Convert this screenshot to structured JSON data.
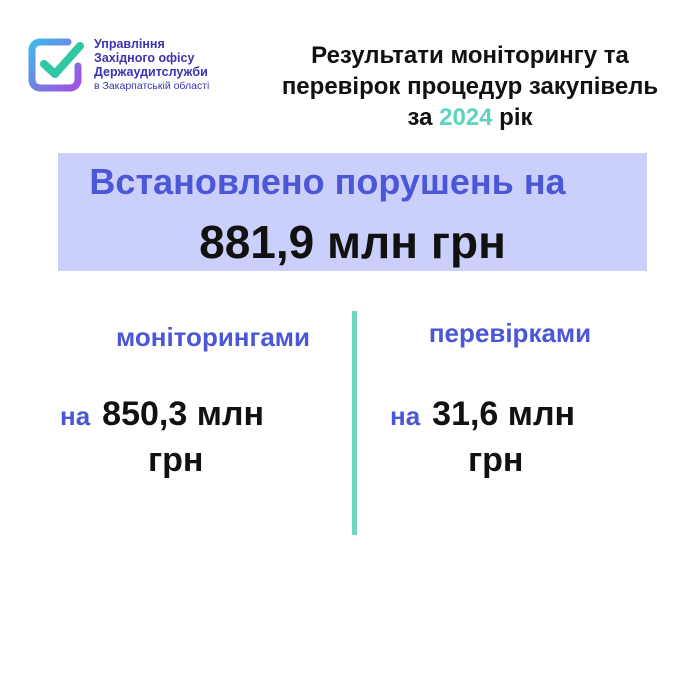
{
  "header": {
    "org_lines": [
      "Управління",
      "Західного офісу",
      "Держаудитслужби"
    ],
    "org_sub": "в Закарпатській області",
    "title_line1": "Результати моніторингу та",
    "title_line2": "перевірок процедур закупівель",
    "title_pre": "за",
    "title_year": "2024",
    "title_post": "рік"
  },
  "banner": {
    "line1": "Встановлено порушень на",
    "line2": "881,9 млн грн"
  },
  "monitoring": {
    "label": "моніторингами",
    "prefix": "на",
    "amount": "850,3 млн",
    "unit": "грн"
  },
  "inspections": {
    "label": "перевірками",
    "prefix": "на",
    "amount": "31,6 млн",
    "unit": "грн"
  },
  "colors": {
    "accent_blue": "#4b57d6",
    "banner_bg": "#cbcffb",
    "teal": "#5ed3bf"
  }
}
